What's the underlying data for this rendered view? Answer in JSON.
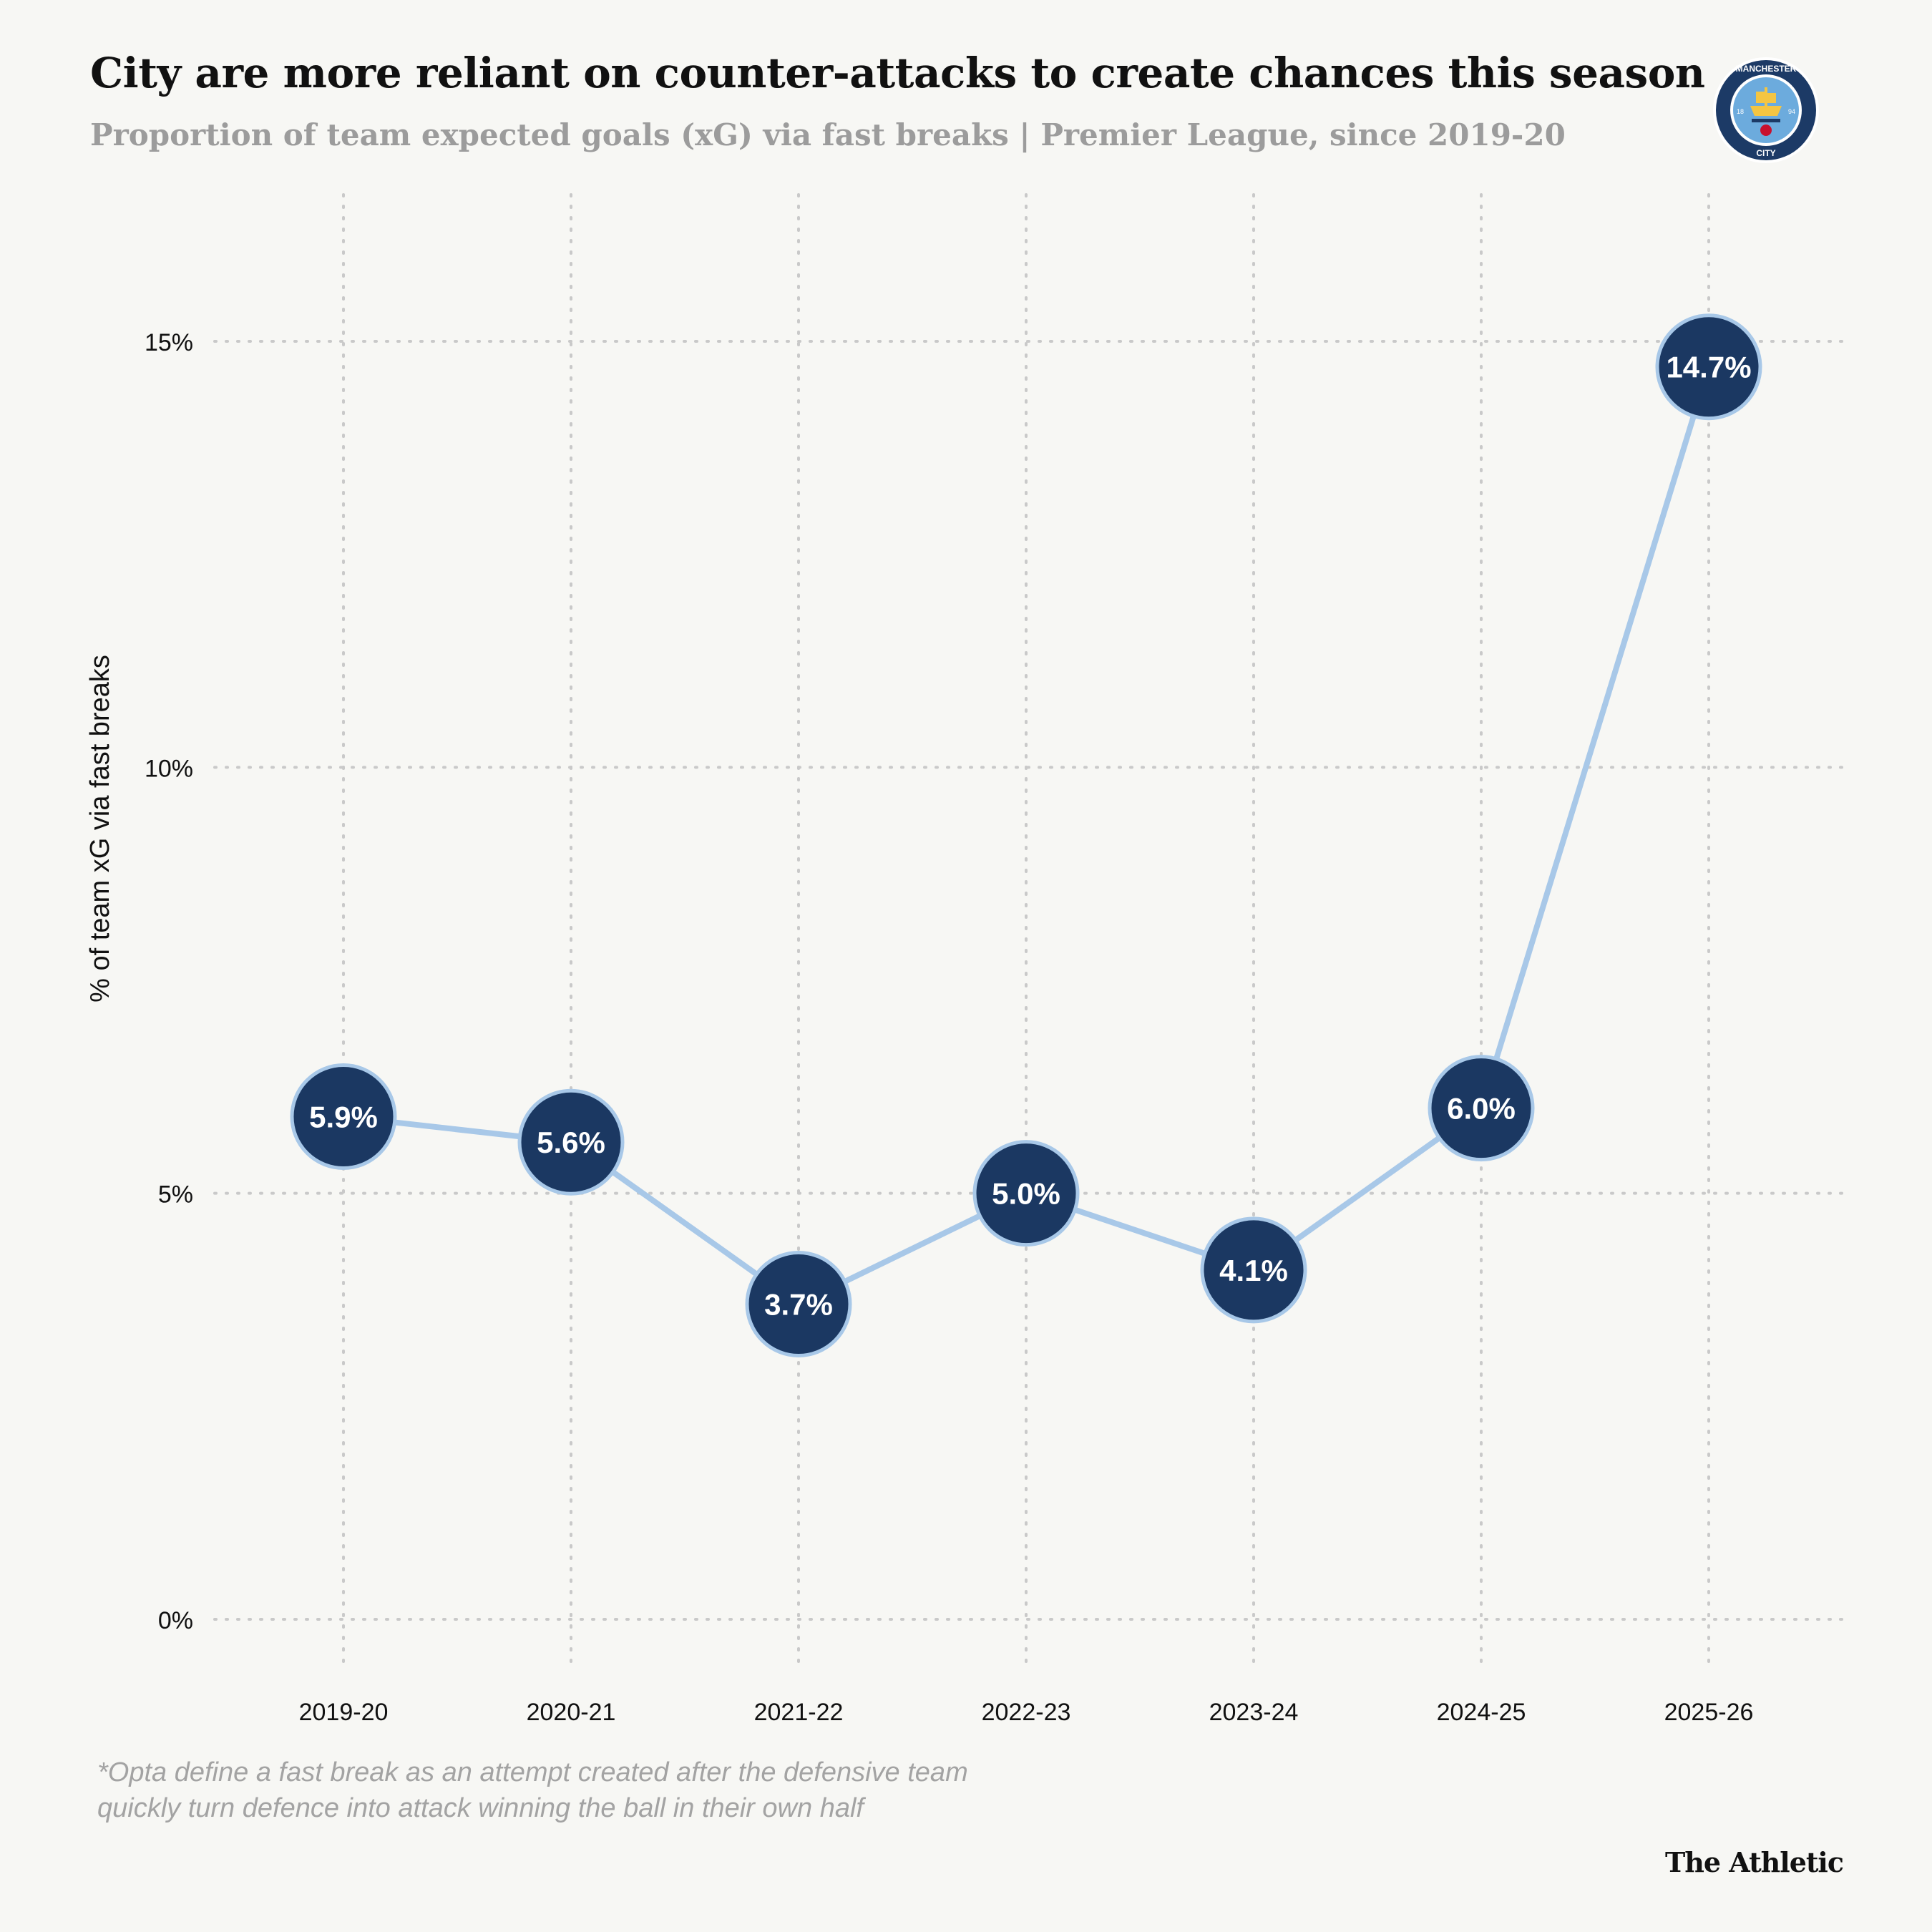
{
  "header": {
    "title": "City are more reliant on counter-attacks to create chances this season",
    "subtitle": "Proportion of team expected goals (xG) via fast breaks | Premier League, since 2019-20"
  },
  "logo": {
    "icon": "manchester-city-crest-icon",
    "top_text": "MANCHESTER",
    "bottom_text": "CITY",
    "year_left": "18",
    "year_right": "94"
  },
  "chart_data": {
    "type": "line",
    "categories": [
      "2019-20",
      "2020-21",
      "2021-22",
      "2022-23",
      "2023-24",
      "2024-25",
      "2025-26"
    ],
    "values": [
      5.9,
      5.6,
      3.7,
      5.0,
      4.1,
      6.0,
      14.7
    ],
    "data_labels": [
      "5.9%",
      "5.6%",
      "3.7%",
      "5.0%",
      "4.1%",
      "6.0%",
      "14.7%"
    ],
    "ylabel": "% of team xG via fast breaks",
    "yticks": [
      0,
      5,
      10,
      15
    ],
    "ytick_labels": [
      "0%",
      "5%",
      "10%",
      "15%"
    ],
    "ylim": [
      0,
      15
    ],
    "grid": true,
    "colors": {
      "line": "#a8c8e8",
      "marker_fill": "#1b3862",
      "marker_stroke": "#a8c8e8",
      "label": "#ffffff",
      "grid": "#c9c9c9"
    }
  },
  "footnote": {
    "line1": "*Opta define a fast break as an attempt created after the defensive team",
    "line2": " quickly turn defence into attack winning the ball in their own half"
  },
  "brand": "The Athletic"
}
